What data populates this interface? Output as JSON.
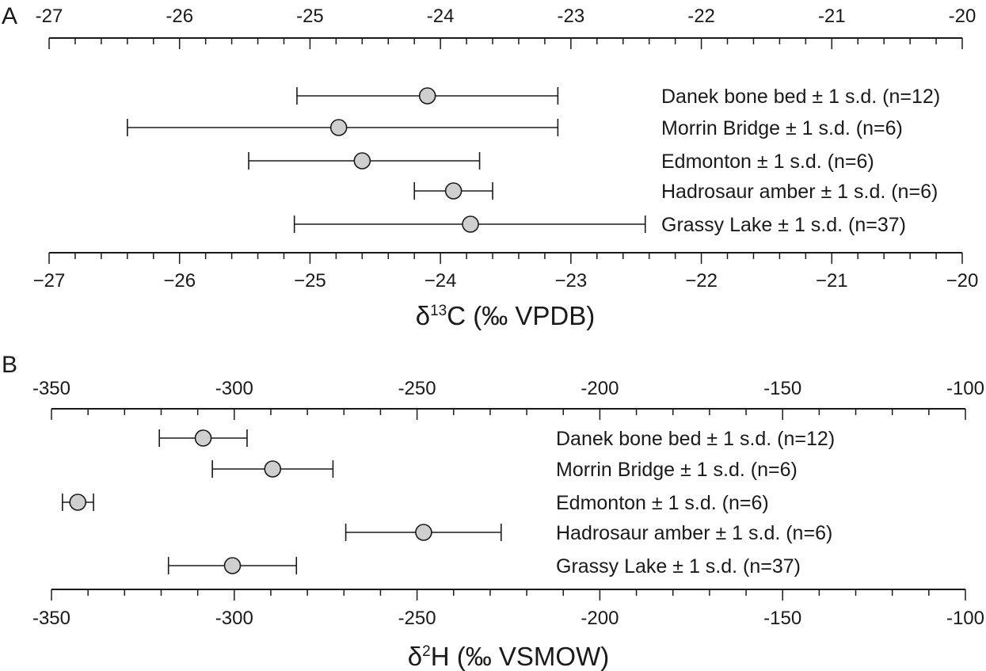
{
  "chart_data": [
    {
      "type": "scatter",
      "panel_label": "A",
      "xlabel_main": "δ",
      "xlabel_sup": "13",
      "xlabel_rest": "C (‰ VPDB)",
      "xlim": [
        -27,
        -20
      ],
      "major_ticks": [
        -27,
        -26,
        -25,
        -24,
        -23,
        -22,
        -21,
        -20
      ],
      "minor_step": 0.2,
      "tick_labels": [
        "-27",
        "-26",
        "-25",
        "-24",
        "-23",
        "-22",
        "-21",
        "-20"
      ],
      "tick_labels_bottom": [
        "−27",
        "−26",
        "−25",
        "−24",
        "−23",
        "−22",
        "−21",
        "−20"
      ],
      "series": [
        {
          "label": "Danek bone bed ± 1 s.d. (n=12)",
          "mean": -24.1,
          "low": -25.1,
          "high": -23.1
        },
        {
          "label": "Morrin Bridge ± 1 s.d. (n=6)",
          "mean": -24.78,
          "low": -26.4,
          "high": -23.1
        },
        {
          "label": "Edmonton ± 1 s.d. (n=6)",
          "mean": -24.6,
          "low": -25.47,
          "high": -23.7
        },
        {
          "label": "Hadrosaur amber ± 1 s.d. (n=6)",
          "mean": -23.9,
          "low": -24.2,
          "high": -23.6
        },
        {
          "label": "Grassy Lake ± 1 s.d. (n=37)",
          "mean": -23.77,
          "low": -25.12,
          "high": -22.43
        }
      ]
    },
    {
      "type": "scatter",
      "panel_label": "B",
      "xlabel_main": "δ",
      "xlabel_sup": "2",
      "xlabel_rest": "H (‰ VSMOW)",
      "xlim": [
        -350,
        -100
      ],
      "major_ticks": [
        -350,
        -300,
        -250,
        -200,
        -150,
        -100
      ],
      "minor_step": 10,
      "tick_labels": [
        "-350",
        "-300",
        "-250",
        "-200",
        "-150",
        "-100"
      ],
      "tick_labels_bottom": [
        "-350",
        "-300",
        "-250",
        "-200",
        "-150",
        "-100"
      ],
      "series": [
        {
          "label": "Danek bone bed ± 1 s.d. (n=12)",
          "mean": -308.5,
          "low": -320.5,
          "high": -296.5
        },
        {
          "label": "Morrin Bridge ± 1 s.d. (n=6)",
          "mean": -289.5,
          "low": -306,
          "high": -273
        },
        {
          "label": "Edmonton ± 1 s.d. (n=6)",
          "mean": -342.8,
          "low": -347,
          "high": -338.5
        },
        {
          "label": "Hadrosaur amber ± 1 s.d. (n=6)",
          "mean": -248.2,
          "low": -269.5,
          "high": -227
        },
        {
          "label": "Grassy Lake ± 1 s.d. (n=37)",
          "mean": -300.5,
          "low": -318,
          "high": -283
        }
      ]
    }
  ]
}
